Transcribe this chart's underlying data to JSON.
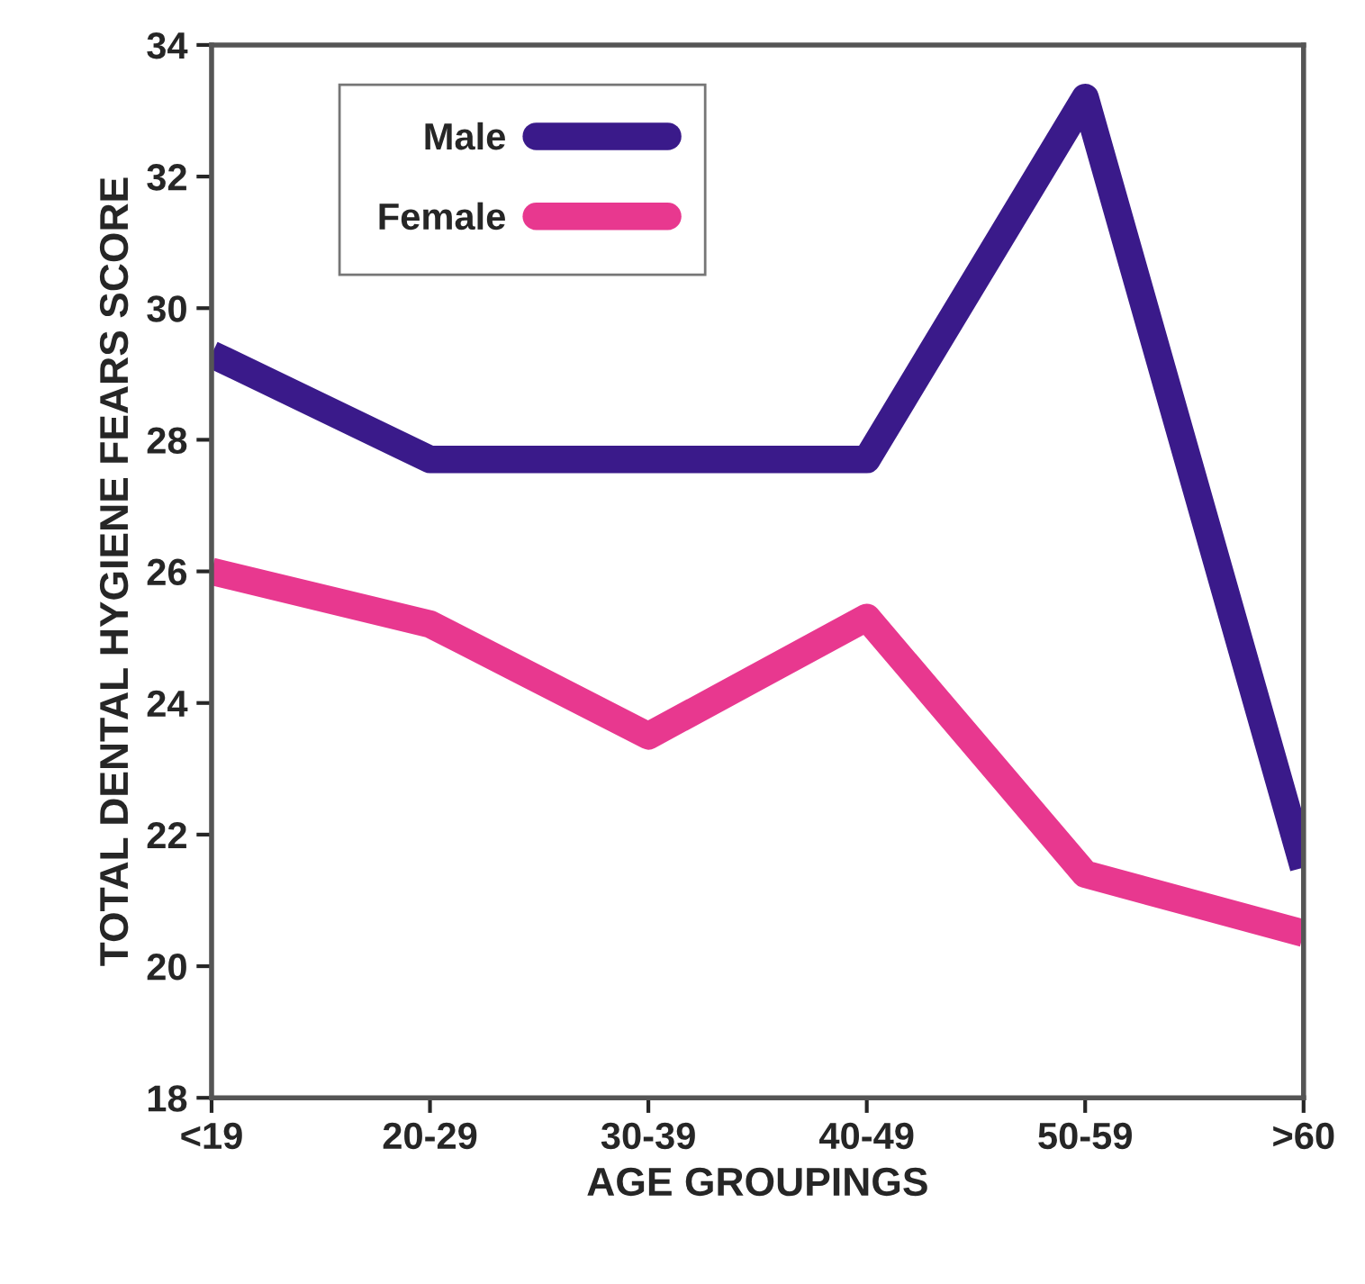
{
  "chart_data": {
    "type": "line",
    "xlabel": "AGE GROUPINGS",
    "ylabel": "TOTAL DENTAL HYGIENE FEARS SCORE",
    "categories": [
      "<19",
      "20-29",
      "30-39",
      "40-49",
      "50-59",
      ">60"
    ],
    "series": [
      {
        "name": "Male",
        "color": "#3a1a8a",
        "values": [
          29.3,
          27.7,
          27.7,
          27.7,
          33.2,
          21.5
        ]
      },
      {
        "name": "Female",
        "color": "#e8388f",
        "values": [
          26.0,
          25.2,
          23.5,
          25.3,
          21.4,
          20.5
        ]
      }
    ],
    "ylim": [
      18,
      34
    ],
    "yticks": [
      18,
      20,
      22,
      24,
      26,
      28,
      30,
      32,
      34
    ],
    "grid": false,
    "legend": "top left",
    "marker": "none",
    "line_style": "solid"
  }
}
